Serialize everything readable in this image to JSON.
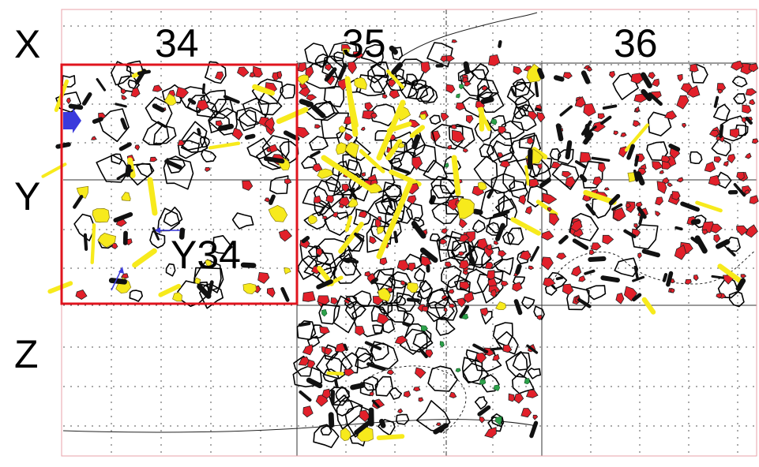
{
  "grid": {
    "columns": [
      "34",
      "35",
      "36"
    ],
    "rows": [
      "X",
      "Y",
      "Z"
    ],
    "highlighted_square": "Y34"
  },
  "colors": {
    "stone_outline": "#000000",
    "red_finds": "#e2202a",
    "bone_yellow": "#f7ea1c",
    "black_finds": "#111111",
    "green_finds": "#2ca24a",
    "highlight_box": "#e0141e",
    "arrow_blue": "#3a3adc",
    "grid_dots": "#555555",
    "grid_lines": "#333333"
  },
  "icons": [
    "blue-arrow-icon",
    "pointer-arrow-icon"
  ]
}
